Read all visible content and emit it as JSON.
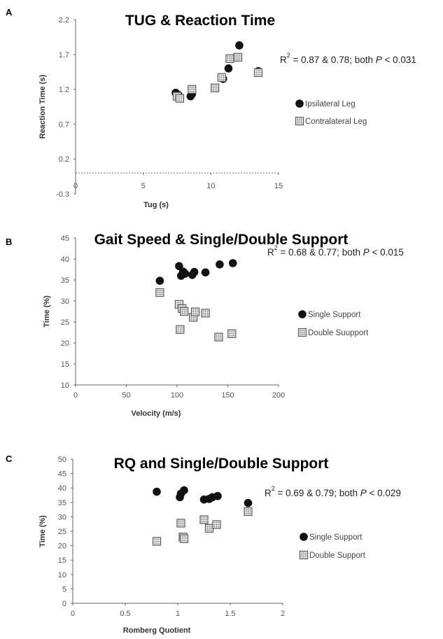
{
  "chart_data": [
    {
      "panel": "A",
      "type": "scatter",
      "title": "TUG & Reaction Time",
      "xlabel": "Tug (s)",
      "ylabel": "Reaction Time (s)",
      "xlim": [
        0,
        15
      ],
      "ylim": [
        -0.3,
        2.2
      ],
      "xticks": [
        "0",
        "5",
        "10",
        "15"
      ],
      "yticks": [
        "-0.3",
        "0.2",
        "0.7",
        "1.2",
        "1.7",
        "2.2"
      ],
      "grid": false,
      "legend_position": "right",
      "annotation": {
        "prefix": "R",
        "sup": "2",
        "text": " = 0.87 & 0.78; both ",
        "italic": "P",
        "suffix": " < 0.031"
      },
      "series": [
        {
          "name": "Ipsilateral Leg",
          "marker": "circle",
          "points": [
            [
              7.4,
              1.15
            ],
            [
              7.6,
              1.12
            ],
            [
              8.5,
              1.1
            ],
            [
              8.6,
              1.13
            ],
            [
              10.9,
              1.35
            ],
            [
              11.3,
              1.5
            ],
            [
              12.1,
              1.83
            ],
            [
              13.5,
              1.46
            ]
          ]
        },
        {
          "name": "Contralateral Leg",
          "marker": "square",
          "points": [
            [
              7.5,
              1.1
            ],
            [
              7.7,
              1.07
            ],
            [
              8.6,
              1.2
            ],
            [
              10.3,
              1.22
            ],
            [
              10.8,
              1.37
            ],
            [
              11.4,
              1.64
            ],
            [
              12.0,
              1.66
            ],
            [
              13.5,
              1.44
            ]
          ]
        }
      ]
    },
    {
      "panel": "B",
      "type": "scatter",
      "title": "Gait Speed & Single/Double Support",
      "xlabel": "Velocity (m/s)",
      "ylabel": "Time (%)",
      "xlim": [
        0,
        200
      ],
      "ylim": [
        10,
        45
      ],
      "xticks": [
        "0",
        "50",
        "100",
        "150",
        "200"
      ],
      "yticks": [
        "10",
        "15",
        "20",
        "25",
        "30",
        "35",
        "40",
        "45"
      ],
      "grid": false,
      "legend_position": "right",
      "annotation": {
        "prefix": "R",
        "sup": "2",
        "text": " = 0.68 & 0.77; both ",
        "italic": "P",
        "suffix": " < 0.015"
      },
      "series": [
        {
          "name": "Single Support",
          "marker": "circle",
          "points": [
            [
              83,
              34.8
            ],
            [
              102,
              38.3
            ],
            [
              104,
              36.0
            ],
            [
              106,
              37.0
            ],
            [
              108,
              36.5
            ],
            [
              115,
              36.2
            ],
            [
              117,
              36.9
            ],
            [
              128,
              36.8
            ],
            [
              142,
              38.7
            ],
            [
              155,
              39.0
            ]
          ]
        },
        {
          "name": "Double Suupport",
          "marker": "square",
          "points": [
            [
              83,
              32.0
            ],
            [
              102,
              29.2
            ],
            [
              103,
              23.2
            ],
            [
              105,
              28.2
            ],
            [
              107,
              27.5
            ],
            [
              116,
              26.1
            ],
            [
              118,
              27.4
            ],
            [
              128,
              27.1
            ],
            [
              141,
              21.4
            ],
            [
              154,
              22.2
            ]
          ]
        }
      ]
    },
    {
      "panel": "C",
      "type": "scatter",
      "title": "RQ and Single/Double Support",
      "xlabel": "Romberg Quotient",
      "ylabel": "Time (%)",
      "xlim": [
        0,
        2
      ],
      "ylim": [
        0,
        50
      ],
      "xticks": [
        "0",
        "0.5",
        "1",
        "1.5",
        "2"
      ],
      "yticks": [
        "0",
        "5",
        "10",
        "15",
        "20",
        "25",
        "30",
        "35",
        "40",
        "45",
        "50"
      ],
      "grid": false,
      "legend_position": "right",
      "annotation": {
        "prefix": "R",
        "sup": "2",
        "text": " = 0.69 & 0.79; both ",
        "italic": "P",
        "suffix": " < 0.029"
      },
      "series": [
        {
          "name": "Single Support",
          "marker": "circle",
          "points": [
            [
              0.8,
              38.7
            ],
            [
              1.02,
              36.8
            ],
            [
              1.03,
              38.0
            ],
            [
              1.06,
              39.2
            ],
            [
              1.25,
              36.0
            ],
            [
              1.3,
              36.2
            ],
            [
              1.33,
              36.8
            ],
            [
              1.38,
              37.2
            ],
            [
              1.67,
              34.8
            ]
          ]
        },
        {
          "name": "Double Support",
          "marker": "square",
          "points": [
            [
              0.8,
              21.5
            ],
            [
              1.03,
              27.8
            ],
            [
              1.05,
              23.0
            ],
            [
              1.06,
              22.4
            ],
            [
              1.25,
              29.0
            ],
            [
              1.3,
              26.0
            ],
            [
              1.37,
              27.3
            ],
            [
              1.67,
              31.8
            ]
          ]
        }
      ]
    }
  ]
}
